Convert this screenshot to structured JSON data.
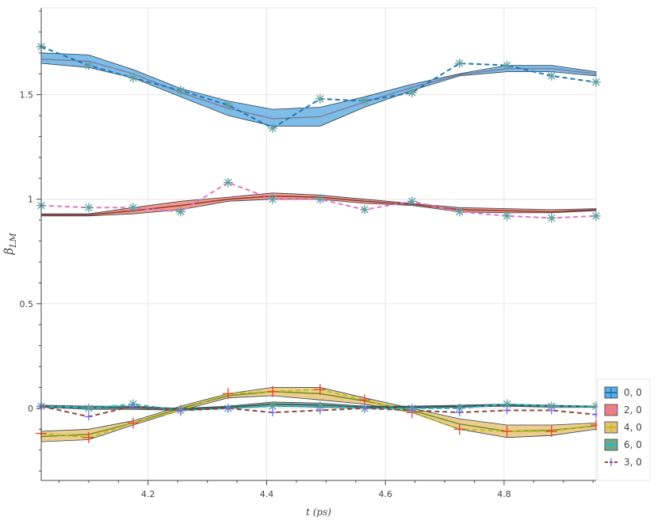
{
  "chart_data": {
    "type": "line",
    "xlabel": "t (ps)",
    "ylabel": "β_LM",
    "ylabel_base": "β",
    "ylabel_sub": "LM",
    "xlim": [
      4.02,
      4.955
    ],
    "ylim": [
      -0.345,
      1.915
    ],
    "xticks": [
      4.2,
      4.4,
      4.6,
      4.8
    ],
    "xtick_labels": [
      "4.2",
      "4.4",
      "4.6",
      "4.8"
    ],
    "yticks": [
      0,
      0.5,
      1,
      1.5
    ],
    "ytick_labels": [
      "0",
      "0.5",
      "1",
      "1.5"
    ],
    "x": [
      4.02,
      4.1,
      4.175,
      4.255,
      4.335,
      4.41,
      4.49,
      4.565,
      4.645,
      4.725,
      4.805,
      4.88,
      4.955
    ],
    "legend_position": "bottom-right",
    "series": [
      {
        "name": "0, 0",
        "color": "#5DADE2",
        "line_color": "#1F77B4",
        "mid_color": "#7F7F9F",
        "upper": [
          1.7,
          1.69,
          1.62,
          1.53,
          1.47,
          1.43,
          1.44,
          1.49,
          1.55,
          1.6,
          1.64,
          1.64,
          1.61
        ],
        "lower": [
          1.65,
          1.63,
          1.58,
          1.49,
          1.4,
          1.35,
          1.35,
          1.44,
          1.52,
          1.59,
          1.61,
          1.61,
          1.59
        ],
        "mid": [
          1.67,
          1.66,
          1.6,
          1.51,
          1.435,
          1.385,
          1.395,
          1.465,
          1.535,
          1.595,
          1.625,
          1.625,
          1.6
        ],
        "points": [
          1.73,
          1.64,
          1.58,
          1.52,
          1.45,
          1.34,
          1.48,
          1.47,
          1.51,
          1.65,
          1.64,
          1.59,
          1.56
        ]
      },
      {
        "name": "2, 0",
        "color": "#F08070",
        "line_color": "#E377C2",
        "mid_color": "#8B3A2A",
        "upper": [
          0.93,
          0.93,
          0.96,
          0.99,
          1.01,
          1.03,
          1.02,
          1.0,
          0.98,
          0.96,
          0.955,
          0.95,
          0.955
        ],
        "lower": [
          0.92,
          0.92,
          0.93,
          0.95,
          0.99,
          1.0,
          1.0,
          0.98,
          0.97,
          0.94,
          0.935,
          0.935,
          0.945
        ],
        "mid": [
          0.925,
          0.925,
          0.945,
          0.97,
          1.0,
          1.015,
          1.01,
          0.99,
          0.975,
          0.95,
          0.945,
          0.94,
          0.95
        ],
        "points": [
          0.97,
          0.96,
          0.96,
          0.94,
          1.08,
          1.0,
          1.0,
          0.95,
          0.99,
          0.94,
          0.92,
          0.91,
          0.92
        ]
      },
      {
        "name": "4, 0",
        "color": "#E8C170",
        "line_color": "#BCBD22",
        "mid_color": "#6B8E23",
        "upper": [
          -0.11,
          -0.1,
          -0.06,
          0.01,
          0.07,
          0.1,
          0.1,
          0.05,
          0.0,
          -0.05,
          -0.08,
          -0.08,
          -0.07
        ],
        "lower": [
          -0.16,
          -0.15,
          -0.08,
          -0.01,
          0.05,
          0.06,
          0.04,
          0.02,
          -0.02,
          -0.1,
          -0.14,
          -0.13,
          -0.1
        ],
        "mid": [
          -0.135,
          -0.125,
          -0.07,
          0.0,
          0.06,
          0.08,
          0.07,
          0.035,
          -0.01,
          -0.075,
          -0.11,
          -0.105,
          -0.085
        ],
        "points": [
          -0.12,
          -0.14,
          -0.07,
          -0.01,
          0.07,
          0.08,
          0.09,
          0.04,
          -0.02,
          -0.1,
          -0.11,
          -0.11,
          -0.08
        ]
      },
      {
        "name": "6, 0",
        "color": "#7FA37F",
        "line_color": "#17BECF",
        "mid_color": "#2F4F4F",
        "upper": [
          0.015,
          0.01,
          0.01,
          0.0,
          0.01,
          0.03,
          0.025,
          0.01,
          0.01,
          0.015,
          0.02,
          0.015,
          0.01
        ],
        "lower": [
          0.005,
          -0.005,
          -0.005,
          -0.01,
          0.0,
          0.01,
          0.005,
          0.0,
          0.0,
          0.005,
          0.01,
          0.005,
          0.005
        ],
        "mid": [
          0.01,
          0.003,
          0.003,
          -0.005,
          0.005,
          0.02,
          0.015,
          0.005,
          0.005,
          0.01,
          0.015,
          0.01,
          0.008
        ],
        "points": [
          0.01,
          0.0,
          0.02,
          -0.01,
          0.0,
          0.01,
          0.01,
          0.0,
          0.0,
          0.0,
          0.02,
          0.01,
          0.01
        ]
      },
      {
        "name": "3, 0",
        "color": "#8B4A3A",
        "line_color": "#8B4A3A",
        "mid_color": "#8B4A3A",
        "points": [
          0.01,
          -0.04,
          0.01,
          -0.01,
          0.0,
          -0.02,
          -0.01,
          0.0,
          -0.01,
          -0.02,
          -0.01,
          -0.01,
          -0.03
        ]
      }
    ]
  }
}
